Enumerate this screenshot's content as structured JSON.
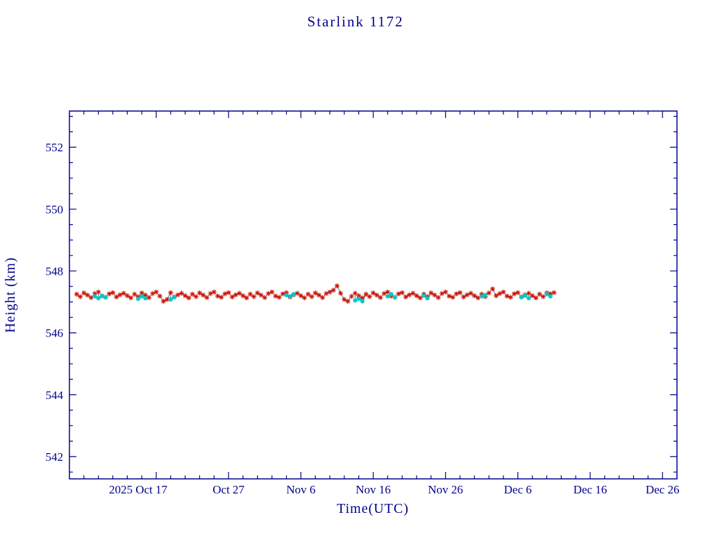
{
  "chart_data": {
    "type": "scatter",
    "title": "Starlink 1172",
    "xlabel": "Time(UTC)",
    "ylabel": "Height (km)",
    "x_unit": "days, 0 = 2025-10-05 (plot left edge)",
    "xlim": [
      0,
      84
    ],
    "ylim": [
      541.28,
      553.17
    ],
    "grid": false,
    "legend": "none",
    "y_ticks": [
      542,
      544,
      546,
      548,
      550,
      552
    ],
    "y_minor_step": 0.5,
    "x_minor_step": 2,
    "x_ticks": [
      {
        "day": 12,
        "label": "2025 Oct 17",
        "label_dx": -26
      },
      {
        "day": 22,
        "label": "Oct 27",
        "label_dx": 0
      },
      {
        "day": 32,
        "label": "Nov 6",
        "label_dx": 0
      },
      {
        "day": 42,
        "label": "Nov 16",
        "label_dx": 0
      },
      {
        "day": 52,
        "label": "Nov 26",
        "label_dx": 0
      },
      {
        "day": 62,
        "label": "Dec 6",
        "label_dx": 0
      },
      {
        "day": 72,
        "label": "Dec 16",
        "label_dx": 0
      },
      {
        "day": 82,
        "label": "Dec 26",
        "label_dx": 0
      }
    ],
    "colors": {
      "axis": "#00008B",
      "title": "#00008B",
      "primary": "#CC1100",
      "secondary": "#00C8C8",
      "line": "#26267F",
      "background": "#FFFFFF"
    },
    "series": [
      {
        "name": "height-primary",
        "marker": "asterisk",
        "color_key": "primary",
        "marker_arm": 3.6,
        "stroke_width": 1.1,
        "x_start": 1.0,
        "x_step": 0.5,
        "y": [
          547.25,
          547.17,
          547.29,
          547.22,
          547.14,
          547.27,
          547.32,
          547.19,
          547.15,
          547.26,
          547.3,
          547.16,
          547.23,
          547.28,
          547.2,
          547.13,
          547.25,
          547.17,
          547.29,
          547.22,
          547.14,
          547.27,
          547.32,
          547.19,
          547.02,
          547.08,
          547.3,
          547.16,
          547.23,
          547.28,
          547.2,
          547.13,
          547.25,
          547.17,
          547.29,
          547.22,
          547.14,
          547.27,
          547.32,
          547.19,
          547.15,
          547.26,
          547.3,
          547.16,
          547.23,
          547.28,
          547.2,
          547.13,
          547.25,
          547.17,
          547.29,
          547.22,
          547.14,
          547.27,
          547.32,
          547.19,
          547.15,
          547.26,
          547.3,
          547.16,
          547.23,
          547.28,
          547.2,
          547.13,
          547.25,
          547.17,
          547.29,
          547.22,
          547.14,
          547.27,
          547.32,
          547.38,
          547.52,
          547.28,
          547.08,
          547.02,
          547.18,
          547.28,
          547.2,
          547.13,
          547.25,
          547.17,
          547.29,
          547.22,
          547.14,
          547.27,
          547.32,
          547.19,
          547.15,
          547.26,
          547.3,
          547.16,
          547.23,
          547.28,
          547.2,
          547.13,
          547.25,
          547.17,
          547.29,
          547.22,
          547.14,
          547.27,
          547.32,
          547.19,
          547.15,
          547.26,
          547.3,
          547.16,
          547.23,
          547.28,
          547.2,
          547.13,
          547.25,
          547.17,
          547.29,
          547.42,
          547.2,
          547.27,
          547.32,
          547.19,
          547.15,
          547.26,
          547.3,
          547.16,
          547.23,
          547.28,
          547.2,
          547.13,
          547.25,
          547.17,
          547.29,
          547.26,
          547.3
        ]
      },
      {
        "name": "height-secondary",
        "marker": "asterisk",
        "color_key": "secondary",
        "marker_arm": 3.2,
        "stroke_width": 1.6,
        "points": [
          [
            3.5,
            547.18
          ],
          [
            4.0,
            547.12
          ],
          [
            4.5,
            547.2
          ],
          [
            5.0,
            547.15
          ],
          [
            9.5,
            547.1
          ],
          [
            10.0,
            547.18
          ],
          [
            10.5,
            547.12
          ],
          [
            14.0,
            547.08
          ],
          [
            14.5,
            547.15
          ],
          [
            30.0,
            547.22
          ],
          [
            30.5,
            547.18
          ],
          [
            31.0,
            547.25
          ],
          [
            39.5,
            547.05
          ],
          [
            40.0,
            547.1
          ],
          [
            40.5,
            547.02
          ],
          [
            44.0,
            547.18
          ],
          [
            44.5,
            547.25
          ],
          [
            45.0,
            547.15
          ],
          [
            49.0,
            547.2
          ],
          [
            49.5,
            547.12
          ],
          [
            57.0,
            547.18
          ],
          [
            57.5,
            547.22
          ],
          [
            62.5,
            547.15
          ],
          [
            63.0,
            547.2
          ],
          [
            63.5,
            547.12
          ],
          [
            66.0,
            547.25
          ],
          [
            66.5,
            547.18
          ]
        ]
      }
    ]
  }
}
